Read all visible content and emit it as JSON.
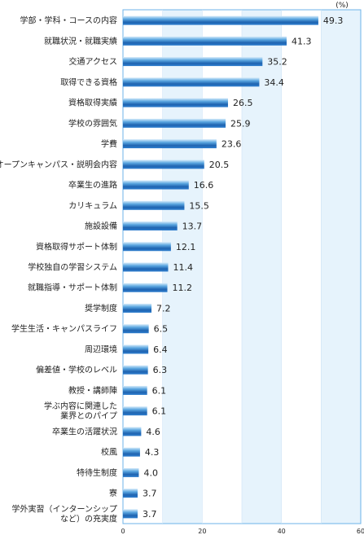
{
  "chart_data": {
    "type": "bar",
    "orientation": "horizontal",
    "unit_label": "(%)",
    "categories": [
      [
        "学部・学科・コースの内容"
      ],
      [
        "就職状況・就職実績"
      ],
      [
        "交通アクセス"
      ],
      [
        "取得できる資格"
      ],
      [
        "資格取得実績"
      ],
      [
        "学校の雰囲気"
      ],
      [
        "学費"
      ],
      [
        "オープンキャンパス・説明会内容"
      ],
      [
        "卒業生の進路"
      ],
      [
        "カリキュラム"
      ],
      [
        "施設設備"
      ],
      [
        "資格取得サポート体制"
      ],
      [
        "学校独自の学習システム"
      ],
      [
        "就職指導・サポート体制"
      ],
      [
        "奨学制度"
      ],
      [
        "学生生活・キャンパスライフ"
      ],
      [
        "周辺環境"
      ],
      [
        "偏差値・学校のレベル"
      ],
      [
        "教授・講師陣"
      ],
      [
        "学ぶ内容に関連した",
        "業界とのパイプ"
      ],
      [
        "卒業生の活躍状況"
      ],
      [
        "校風"
      ],
      [
        "特待生制度"
      ],
      [
        "寮"
      ],
      [
        "学外実習（インターンシップ",
        "など）の充実度"
      ]
    ],
    "values": [
      49.3,
      41.3,
      35.2,
      34.4,
      26.5,
      25.9,
      23.6,
      20.5,
      16.6,
      15.5,
      13.7,
      12.1,
      11.4,
      11.2,
      7.2,
      6.5,
      6.4,
      6.3,
      6.1,
      6.1,
      4.6,
      4.3,
      4.0,
      3.7,
      3.7
    ],
    "xlim": [
      0,
      60
    ],
    "xticks": [
      0,
      20,
      40,
      60
    ],
    "grid": "alternating light-blue bands every 10",
    "colors": {
      "bar_light": "#cfe6f8",
      "bar_mid": "#4a9ad8",
      "bar_dark": "#1a5aa6",
      "band": "#e6f3fc",
      "frame": "#6cb3e8"
    }
  }
}
